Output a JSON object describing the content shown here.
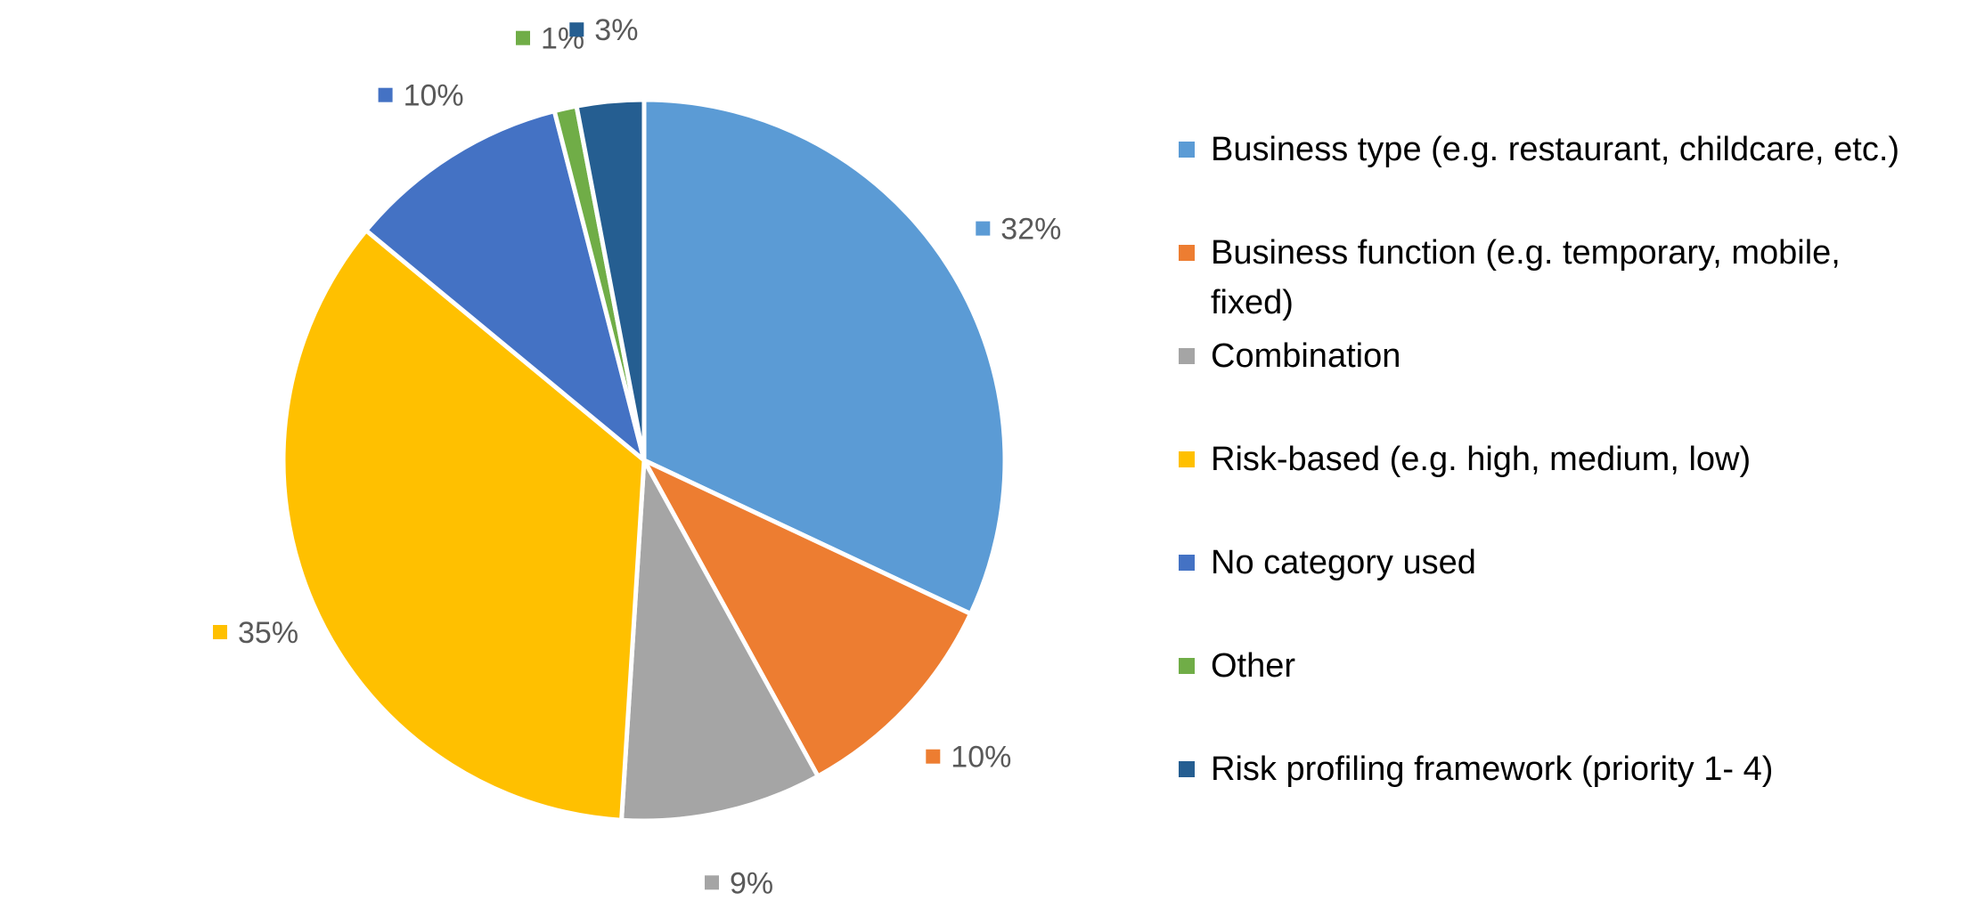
{
  "chart_data": {
    "type": "pie",
    "title": "",
    "legend_position": "right",
    "slices": [
      {
        "label": "Business type (e.g. restaurant, childcare, etc.)",
        "value": 32,
        "display": "32%",
        "color": "#5B9BD5"
      },
      {
        "label": "Business function (e.g. temporary, mobile, fixed)",
        "value": 10,
        "display": "10%",
        "color": "#ED7D31"
      },
      {
        "label": "Combination",
        "value": 9,
        "display": "9%",
        "color": "#A5A5A5"
      },
      {
        "label": "Risk-based (e.g. high, medium, low)",
        "value": 35,
        "display": "35%",
        "color": "#FFC000"
      },
      {
        "label": "No category used",
        "value": 10,
        "display": "10%",
        "color": "#4472C4"
      },
      {
        "label": "Other",
        "value": 1,
        "display": "1%",
        "color": "#70AD47"
      },
      {
        "label": "Risk profiling framework (priority 1- 4)",
        "value": 3,
        "display": "3%",
        "color": "#255E91"
      }
    ]
  }
}
